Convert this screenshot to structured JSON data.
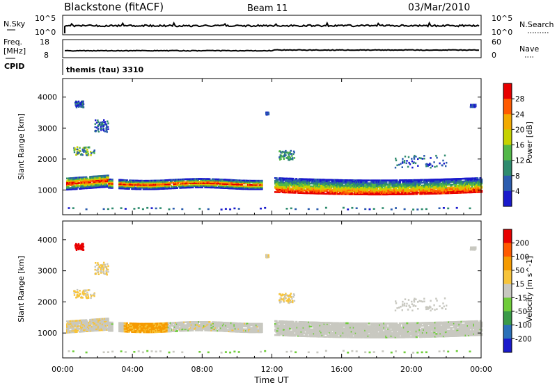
{
  "header": {
    "station": "Blackstone (fitACF)",
    "beam": "Beam 11",
    "date": "03/Mar/2010"
  },
  "top_panels": {
    "nsky_label": "N.Sky",
    "nsky_ticks": [
      "10^5",
      "10^0"
    ],
    "nsearch_label": "N.Search",
    "nsearch_ticks": [
      "10^5",
      "10^0"
    ],
    "freq_label_line1": "Freq.",
    "freq_label_line2": "[MHz]",
    "freq_ticks": [
      "18",
      "8"
    ],
    "nave_label": "Nave",
    "nave_ticks": [
      "60",
      "0"
    ],
    "cpid_label": "CPID",
    "cpid_text": "themis (tau) 3310"
  },
  "chart_data": [
    {
      "type": "heatmap",
      "ylabel": "Slant Range [km]",
      "ylim": [
        200,
        4600
      ],
      "yticks": [
        "4000",
        "3000",
        "2000",
        "1000"
      ],
      "xlim": [
        0,
        24
      ],
      "colorbar_label": "Power [dB]",
      "colorbar_ticks": [
        "28",
        "24",
        "20",
        "16",
        "12",
        "8",
        "4"
      ],
      "colors": [
        "#1a1acc",
        "#2b5cae",
        "#2e8b6e",
        "#52b848",
        "#c6d200",
        "#f2aa00",
        "#ff5a00",
        "#e80000"
      ]
    },
    {
      "type": "heatmap",
      "ylabel": "Slant Range [km]",
      "ylim": [
        200,
        4600
      ],
      "yticks": [
        "4000",
        "3000",
        "2000",
        "1000"
      ],
      "xlim": [
        0,
        24
      ],
      "xlabel": "Time UT",
      "xticks": [
        "00:00",
        "04:00",
        "08:00",
        "12:00",
        "16:00",
        "20:00",
        "00:00"
      ],
      "colorbar_label": "Velocity [m s^-1]",
      "colorbar_ticks": [
        "200",
        "100",
        "50",
        "15",
        "-15",
        "-50",
        "-100",
        "-200"
      ],
      "colors": [
        "#e80000",
        "#ff5a00",
        "#f59a00",
        "#f7c43a",
        "#c8c8c0",
        "#6fcc3a",
        "#3a9a48",
        "#2a70b8",
        "#1a1acc"
      ]
    }
  ]
}
